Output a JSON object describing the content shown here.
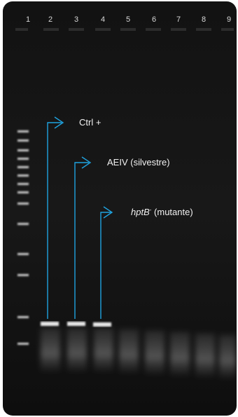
{
  "lanes": [
    "1",
    "2",
    "3",
    "4",
    "5",
    "6",
    "7",
    "8",
    "9"
  ],
  "annotations": [
    {
      "text": "Ctrl +"
    },
    {
      "text": "AEIV (silvestre)"
    },
    {
      "parts": [
        "hptB",
        "-",
        " (mutante)"
      ]
    }
  ]
}
